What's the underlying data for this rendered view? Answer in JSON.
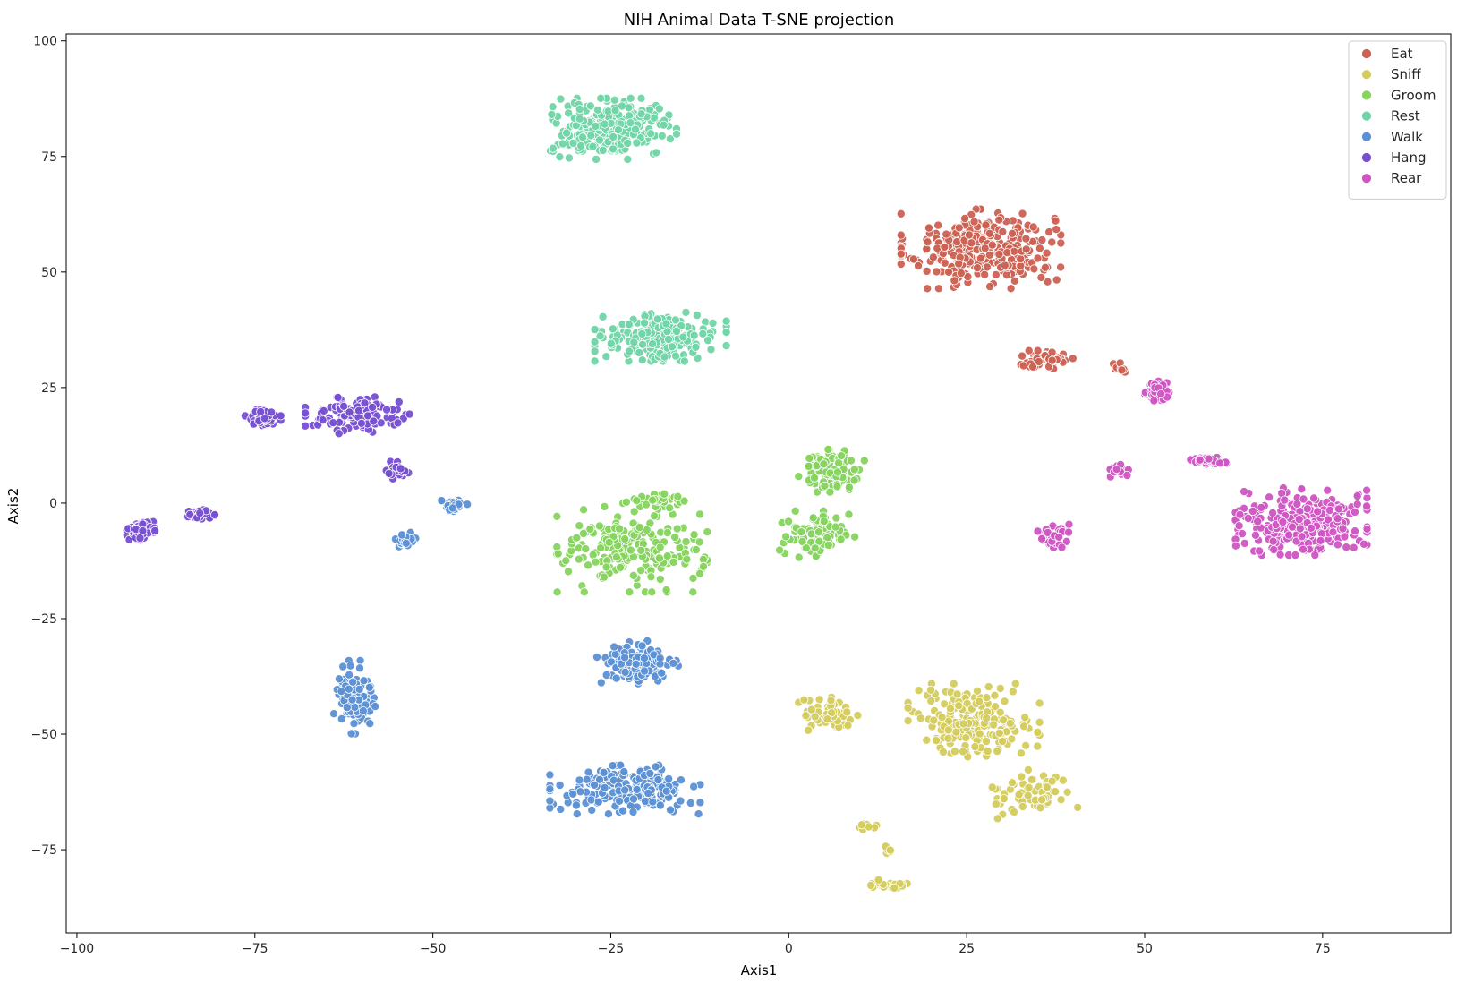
{
  "chart_data": {
    "type": "scatter",
    "title": "NIH Animal Data T-SNE projection",
    "xlabel": "Axis1",
    "ylabel": "Axis2",
    "xlim": [
      -101.5,
      93
    ],
    "ylim": [
      -93,
      101.5
    ],
    "xticks": [
      -100,
      -75,
      -50,
      -25,
      0,
      25,
      50,
      75
    ],
    "yticks": [
      100,
      75,
      50,
      25,
      0,
      -25,
      -50,
      -75
    ],
    "grid": false,
    "legend_position": "top-right",
    "series": [
      {
        "name": "Eat",
        "color": "#cb6152",
        "clusters": [
          {
            "center": [
              27,
              55
            ],
            "spread": [
              8.5,
              6.5
            ],
            "n": 330
          },
          {
            "center": [
              36,
              31
            ],
            "spread": [
              3.5,
              1.5
            ],
            "n": 50
          },
          {
            "center": [
              46.5,
              29.5
            ],
            "spread": [
              1,
              1.2
            ],
            "n": 12
          }
        ]
      },
      {
        "name": "Sniff",
        "color": "#d4cc5e",
        "clusters": [
          {
            "center": [
              6,
              -46
            ],
            "spread": [
              3.5,
              3
            ],
            "n": 55
          },
          {
            "center": [
              26,
              -47
            ],
            "spread": [
              7,
              6
            ],
            "n": 200
          },
          {
            "center": [
              34,
              -63
            ],
            "spread": [
              5,
              4
            ],
            "n": 60
          },
          {
            "center": [
              11,
              -70
            ],
            "spread": [
              1,
              0.6
            ],
            "n": 8
          },
          {
            "center": [
              14,
              -82.5
            ],
            "spread": [
              2,
              1
            ],
            "n": 30
          },
          {
            "center": [
              14,
              -75
            ],
            "spread": [
              0.7,
              0.7
            ],
            "n": 6
          }
        ]
      },
      {
        "name": "Groom",
        "color": "#86d45e",
        "clusters": [
          {
            "center": [
              6,
              7
            ],
            "spread": [
              3.5,
              3.5
            ],
            "n": 110
          },
          {
            "center": [
              4,
              -7
            ],
            "spread": [
              4,
              4
            ],
            "n": 90
          },
          {
            "center": [
              -22,
              -10
            ],
            "spread": [
              8,
              7
            ],
            "n": 210
          },
          {
            "center": [
              -18,
              1
            ],
            "spread": [
              4,
              1
            ],
            "n": 30
          }
        ]
      },
      {
        "name": "Rest",
        "color": "#70d5a6",
        "clusters": [
          {
            "center": [
              -25,
              81
            ],
            "spread": [
              7,
              5
            ],
            "n": 250
          },
          {
            "center": [
              -18,
              36
            ],
            "spread": [
              7,
              4
            ],
            "n": 200
          }
        ]
      },
      {
        "name": "Walk",
        "color": "#5b90d4",
        "clusters": [
          {
            "center": [
              -47,
              -0.5
            ],
            "spread": [
              1.4,
              1.2
            ],
            "n": 30
          },
          {
            "center": [
              -54,
              -8
            ],
            "spread": [
              1.2,
              1.5
            ],
            "n": 22
          },
          {
            "center": [
              -61,
              -42
            ],
            "spread": [
              2.2,
              6
            ],
            "n": 120
          },
          {
            "center": [
              -21,
              -35
            ],
            "spread": [
              4.5,
              4
            ],
            "n": 110
          },
          {
            "center": [
              -23,
              -62
            ],
            "spread": [
              8,
              4
            ],
            "n": 200
          }
        ]
      },
      {
        "name": "Hang",
        "color": "#774fd2",
        "clusters": [
          {
            "center": [
              -74,
              18.5
            ],
            "spread": [
              2,
              1.5
            ],
            "n": 60
          },
          {
            "center": [
              -60,
              19
            ],
            "spread": [
              6,
              3
            ],
            "n": 120
          },
          {
            "center": [
              -55,
              7
            ],
            "spread": [
              1.2,
              1.5
            ],
            "n": 25
          },
          {
            "center": [
              -91,
              -6
            ],
            "spread": [
              1.5,
              1.5
            ],
            "n": 60
          },
          {
            "center": [
              -83,
              -2.5
            ],
            "spread": [
              1.8,
              0.8
            ],
            "n": 25
          }
        ]
      },
      {
        "name": "Rear",
        "color": "#cf55c3",
        "clusters": [
          {
            "center": [
              72,
              -4
            ],
            "spread": [
              7,
              5.5
            ],
            "n": 300
          },
          {
            "center": [
              59,
              9
            ],
            "spread": [
              2,
              1
            ],
            "n": 30
          },
          {
            "center": [
              46.5,
              7
            ],
            "spread": [
              1.3,
              1
            ],
            "n": 20
          },
          {
            "center": [
              37,
              -7
            ],
            "spread": [
              1.8,
              2
            ],
            "n": 50
          },
          {
            "center": [
              52,
              24
            ],
            "spread": [
              1.5,
              1.8
            ],
            "n": 45
          }
        ]
      }
    ]
  }
}
